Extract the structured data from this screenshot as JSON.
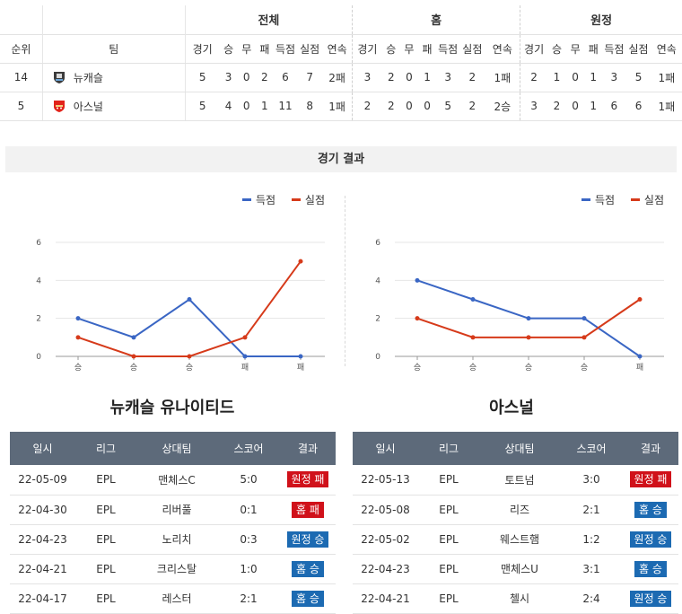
{
  "standings": {
    "groups": [
      "전체",
      "홈",
      "원정"
    ],
    "rank_header": "순위",
    "team_header": "팀",
    "columns": [
      "경기",
      "승",
      "무",
      "패",
      "득점",
      "실점",
      "연속"
    ],
    "rows": [
      {
        "rank": "14",
        "team": "뉴캐슬",
        "logo": "newcastle-crest-icon",
        "overall": [
          "5",
          "3",
          "0",
          "2",
          "6",
          "7",
          "2패"
        ],
        "home": [
          "3",
          "2",
          "0",
          "1",
          "3",
          "2",
          "1패"
        ],
        "away": [
          "2",
          "1",
          "0",
          "1",
          "3",
          "5",
          "1패"
        ]
      },
      {
        "rank": "5",
        "team": "아스널",
        "logo": "arsenal-crest-icon",
        "overall": [
          "5",
          "4",
          "0",
          "1",
          "11",
          "8",
          "1패"
        ],
        "home": [
          "2",
          "2",
          "0",
          "0",
          "5",
          "2",
          "2승"
        ],
        "away": [
          "3",
          "2",
          "0",
          "1",
          "6",
          "6",
          "1패"
        ]
      }
    ]
  },
  "section_title": "경기 결과",
  "legend": {
    "scored": "득점",
    "conceded": "실점"
  },
  "colors": {
    "scored": "#3a66c4",
    "conceded": "#d63a1a",
    "loss_badge": "#d0111a",
    "win_badge": "#1c6ab2",
    "table_header": "#5d6a7a"
  },
  "chart_data": [
    {
      "type": "line",
      "categories": [
        "승",
        "승",
        "승",
        "패",
        "패"
      ],
      "ylim": [
        0,
        6
      ],
      "yticks": [
        0,
        2,
        4,
        6
      ],
      "series": [
        {
          "name": "득점",
          "values": [
            2,
            1,
            3,
            0,
            0
          ]
        },
        {
          "name": "실점",
          "values": [
            1,
            0,
            0,
            1,
            5
          ]
        }
      ]
    },
    {
      "type": "line",
      "categories": [
        "승",
        "승",
        "승",
        "승",
        "패"
      ],
      "ylim": [
        0,
        6
      ],
      "yticks": [
        0,
        2,
        4,
        6
      ],
      "series": [
        {
          "name": "득점",
          "values": [
            4,
            3,
            2,
            2,
            0
          ]
        },
        {
          "name": "실점",
          "values": [
            2,
            1,
            1,
            1,
            3
          ]
        }
      ]
    }
  ],
  "teams": {
    "left": {
      "name": "뉴캐슬 유나이티드",
      "matches": [
        {
          "date": "22-05-09",
          "league": "EPL",
          "opponent": "맨체스C",
          "score": "5:0",
          "result": "원정 패",
          "win": false
        },
        {
          "date": "22-04-30",
          "league": "EPL",
          "opponent": "리버풀",
          "score": "0:1",
          "result": "홈 패",
          "win": false
        },
        {
          "date": "22-04-23",
          "league": "EPL",
          "opponent": "노리치",
          "score": "0:3",
          "result": "원정 승",
          "win": true
        },
        {
          "date": "22-04-21",
          "league": "EPL",
          "opponent": "크리스탈",
          "score": "1:0",
          "result": "홈 승",
          "win": true
        },
        {
          "date": "22-04-17",
          "league": "EPL",
          "opponent": "레스터",
          "score": "2:1",
          "result": "홈 승",
          "win": true
        }
      ]
    },
    "right": {
      "name": "아스널",
      "matches": [
        {
          "date": "22-05-13",
          "league": "EPL",
          "opponent": "토트넘",
          "score": "3:0",
          "result": "원정 패",
          "win": false
        },
        {
          "date": "22-05-08",
          "league": "EPL",
          "opponent": "리즈",
          "score": "2:1",
          "result": "홈 승",
          "win": true
        },
        {
          "date": "22-05-02",
          "league": "EPL",
          "opponent": "웨스트햄",
          "score": "1:2",
          "result": "원정 승",
          "win": true
        },
        {
          "date": "22-04-23",
          "league": "EPL",
          "opponent": "맨체스U",
          "score": "3:1",
          "result": "홈 승",
          "win": true
        },
        {
          "date": "22-04-21",
          "league": "EPL",
          "opponent": "첼시",
          "score": "2:4",
          "result": "원정 승",
          "win": true
        }
      ]
    }
  },
  "results_headers": [
    "일시",
    "리그",
    "상대팀",
    "스코어",
    "결과"
  ]
}
